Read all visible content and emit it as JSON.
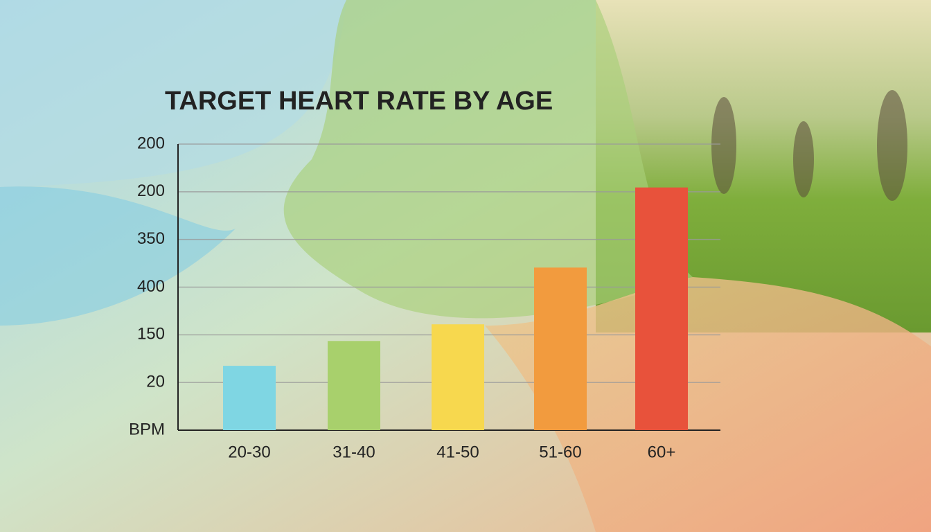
{
  "chart_data": {
    "type": "bar",
    "title": "TARGET HEART RATE BY AGE",
    "categories": [
      "20-30",
      "31-40",
      "41-50",
      "51-60",
      "60+"
    ],
    "values": [
      1.35,
      1.87,
      2.22,
      3.41,
      5.09
    ],
    "colors": [
      "#7fd6e3",
      "#a8d06c",
      "#f7d84e",
      "#f29b3e",
      "#e8523b"
    ],
    "ylim": [
      0,
      6
    ],
    "yticks": [
      {
        "value": 0,
        "label": "BPM"
      },
      {
        "value": 1,
        "label": "20"
      },
      {
        "value": 2,
        "label": "150"
      },
      {
        "value": 3,
        "label": "400"
      },
      {
        "value": 4,
        "label": "350"
      },
      {
        "value": 5,
        "label": "200"
      },
      {
        "value": 6,
        "label": "200"
      }
    ],
    "grid": true
  }
}
